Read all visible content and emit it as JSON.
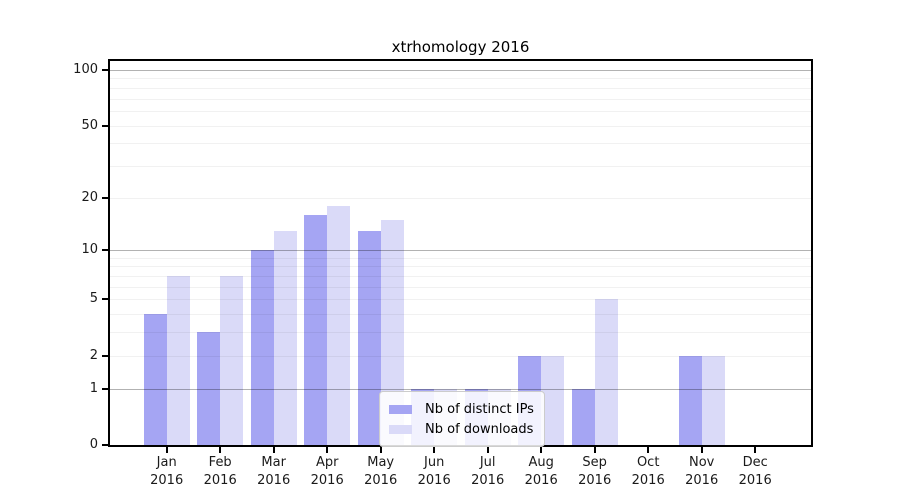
{
  "title": "xtrhomology 2016",
  "chart_data": {
    "type": "bar",
    "title": "xtrhomology 2016",
    "year": "2016",
    "categories": [
      "Jan",
      "Feb",
      "Mar",
      "Apr",
      "May",
      "Jun",
      "Jul",
      "Aug",
      "Sep",
      "Oct",
      "Nov",
      "Dec"
    ],
    "series": [
      {
        "name": "Nb of distinct IPs",
        "color": "#a5a5f3",
        "values": [
          4,
          3,
          10,
          16,
          13,
          1,
          1,
          2,
          1,
          0,
          2,
          0
        ]
      },
      {
        "name": "Nb of downloads",
        "color": "#dadaf8",
        "values": [
          7,
          7,
          13,
          18,
          15,
          1,
          1,
          2,
          5,
          0,
          2,
          0
        ]
      }
    ],
    "y_ticks": [
      100,
      50,
      20,
      10,
      5,
      2,
      1,
      0
    ],
    "y_major_gridlines": [
      1,
      10,
      100
    ],
    "y_minor_gridlines": [
      2,
      3,
      4,
      5,
      6,
      7,
      8,
      9,
      20,
      30,
      40,
      50,
      60,
      70,
      80,
      90
    ],
    "ylim": [
      0,
      100
    ],
    "scale": "log10(value+1)",
    "grid": true,
    "legend_position": "lower-center",
    "xlabel": "",
    "ylabel": ""
  }
}
